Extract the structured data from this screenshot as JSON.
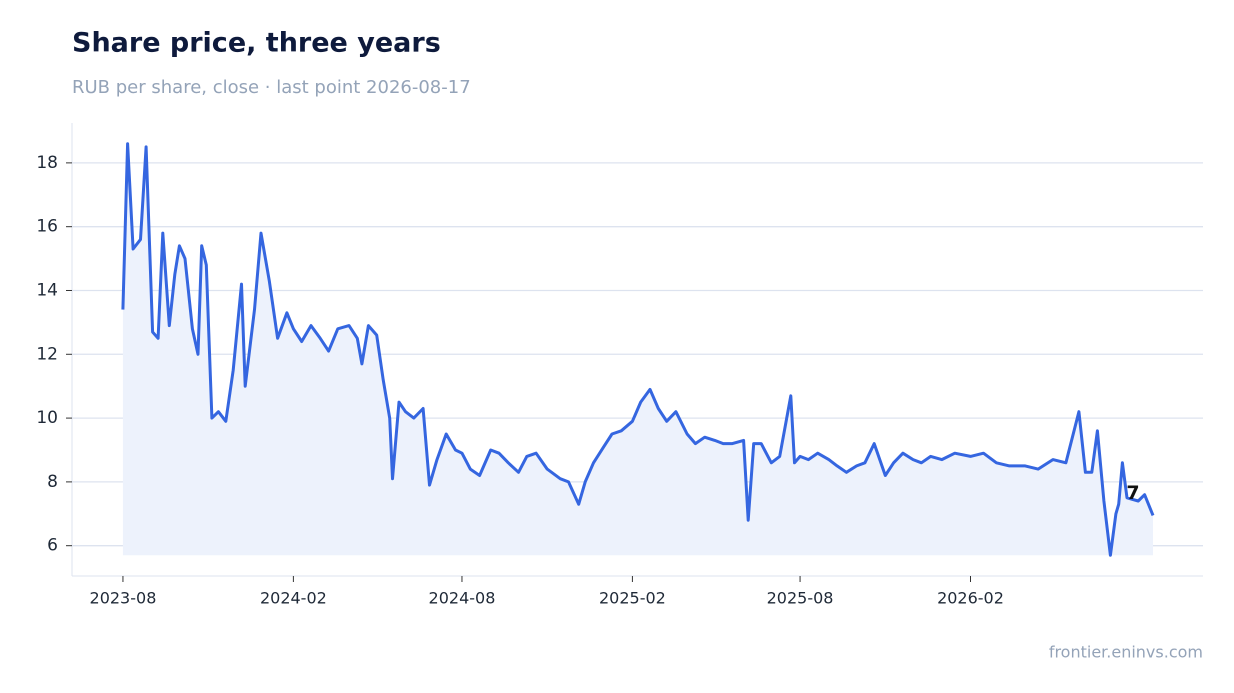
{
  "chart_data": {
    "type": "line",
    "title": "Share price, three years",
    "subtitle": "RUB per share, close · last point 2026-08-17",
    "source": "frontier.eninvs.com",
    "last_value_label": "7",
    "color": "#3566e0",
    "fill_color": "#edf2fc",
    "grid": true,
    "x": [
      "2023-08-01",
      "2023-08-06",
      "2023-08-12",
      "2023-08-20",
      "2023-08-26",
      "2023-09-02",
      "2023-09-08",
      "2023-09-13",
      "2023-09-20",
      "2023-09-26",
      "2023-10-01",
      "2023-10-07",
      "2023-10-15",
      "2023-10-21",
      "2023-10-25",
      "2023-10-30",
      "2023-11-05",
      "2023-11-12",
      "2023-11-20",
      "2023-11-28",
      "2023-12-07",
      "2023-12-11",
      "2023-12-21",
      "2023-12-28",
      "2024-01-06",
      "2024-01-15",
      "2024-01-25",
      "2024-02-01",
      "2024-02-10",
      "2024-02-20",
      "2024-03-01",
      "2024-03-10",
      "2024-03-20",
      "2024-04-01",
      "2024-04-10",
      "2024-04-15",
      "2024-04-22",
      "2024-05-01",
      "2024-05-08",
      "2024-05-15",
      "2024-05-18",
      "2024-05-25",
      "2024-06-01",
      "2024-06-10",
      "2024-06-20",
      "2024-06-27",
      "2024-07-05",
      "2024-07-15",
      "2024-07-25",
      "2024-08-01",
      "2024-08-10",
      "2024-08-20",
      "2024-09-01",
      "2024-09-10",
      "2024-09-20",
      "2024-10-01",
      "2024-10-10",
      "2024-10-20",
      "2024-11-01",
      "2024-11-15",
      "2024-11-24",
      "2024-12-05",
      "2024-12-12",
      "2024-12-21",
      "2025-01-01",
      "2025-01-10",
      "2025-01-20",
      "2025-02-01",
      "2025-02-10",
      "2025-02-20",
      "2025-03-01",
      "2025-03-10",
      "2025-03-20",
      "2025-04-01",
      "2025-04-10",
      "2025-04-20",
      "2025-05-01",
      "2025-05-10",
      "2025-05-20",
      "2025-06-01",
      "2025-06-06",
      "2025-06-12",
      "2025-06-20",
      "2025-07-01",
      "2025-07-10",
      "2025-07-22",
      "2025-07-26",
      "2025-08-01",
      "2025-08-10",
      "2025-08-20",
      "2025-09-01",
      "2025-09-10",
      "2025-09-20",
      "2025-10-01",
      "2025-10-10",
      "2025-10-20",
      "2025-11-01",
      "2025-11-10",
      "2025-11-20",
      "2025-12-01",
      "2025-12-10",
      "2025-12-20",
      "2026-01-01",
      "2026-01-15",
      "2026-02-01",
      "2026-02-15",
      "2026-03-01",
      "2026-03-15",
      "2026-04-01",
      "2026-04-15",
      "2026-05-01",
      "2026-05-15",
      "2026-05-29",
      "2026-06-05",
      "2026-06-12",
      "2026-06-18",
      "2026-06-25",
      "2026-07-02",
      "2026-07-08",
      "2026-07-11",
      "2026-07-15",
      "2026-07-20",
      "2026-08-01",
      "2026-08-08",
      "2026-08-17"
    ],
    "values": [
      13.4,
      18.6,
      15.3,
      15.6,
      18.5,
      12.7,
      12.5,
      15.8,
      12.9,
      14.5,
      15.4,
      15.0,
      12.8,
      12.0,
      15.4,
      14.8,
      10.0,
      10.2,
      9.9,
      11.5,
      14.2,
      11.0,
      13.4,
      15.8,
      14.3,
      12.5,
      13.3,
      12.8,
      12.4,
      12.9,
      12.5,
      12.1,
      12.8,
      12.9,
      12.5,
      11.7,
      12.9,
      12.6,
      11.2,
      10.0,
      8.1,
      10.5,
      10.2,
      10.0,
      10.3,
      7.9,
      8.7,
      9.5,
      9.0,
      8.9,
      8.4,
      8.2,
      9.0,
      8.9,
      8.6,
      8.3,
      8.8,
      8.9,
      8.4,
      8.1,
      8.0,
      7.3,
      8.0,
      8.6,
      9.1,
      9.5,
      9.6,
      9.9,
      10.5,
      10.9,
      10.3,
      9.9,
      10.2,
      9.5,
      9.2,
      9.4,
      9.3,
      9.2,
      9.2,
      9.3,
      6.8,
      9.2,
      9.2,
      8.6,
      8.8,
      10.7,
      8.6,
      8.8,
      8.7,
      8.9,
      8.7,
      8.5,
      8.3,
      8.5,
      8.6,
      9.2,
      8.2,
      8.6,
      8.9,
      8.7,
      8.6,
      8.8,
      8.7,
      8.9,
      8.8,
      8.9,
      8.6,
      8.5,
      8.5,
      8.4,
      8.7,
      8.6,
      10.2,
      8.3,
      8.3,
      9.6,
      7.4,
      5.7,
      7.0,
      7.3,
      8.6,
      7.5,
      7.4,
      7.6,
      6.95
    ],
    "xlim": [
      "2023-06-07",
      "2026-10-10"
    ],
    "xticks": [
      {
        "value": "2023-08-01",
        "label": "2023-08"
      },
      {
        "value": "2024-02-01",
        "label": "2024-02"
      },
      {
        "value": "2024-08-01",
        "label": "2024-08"
      },
      {
        "value": "2025-02-01",
        "label": "2025-02"
      },
      {
        "value": "2025-08-01",
        "label": "2025-08"
      },
      {
        "value": "2026-02-01",
        "label": "2026-02"
      }
    ],
    "ylim": [
      5.05,
      19.25
    ],
    "yticks": [
      6,
      8,
      10,
      12,
      14,
      16,
      18
    ]
  }
}
